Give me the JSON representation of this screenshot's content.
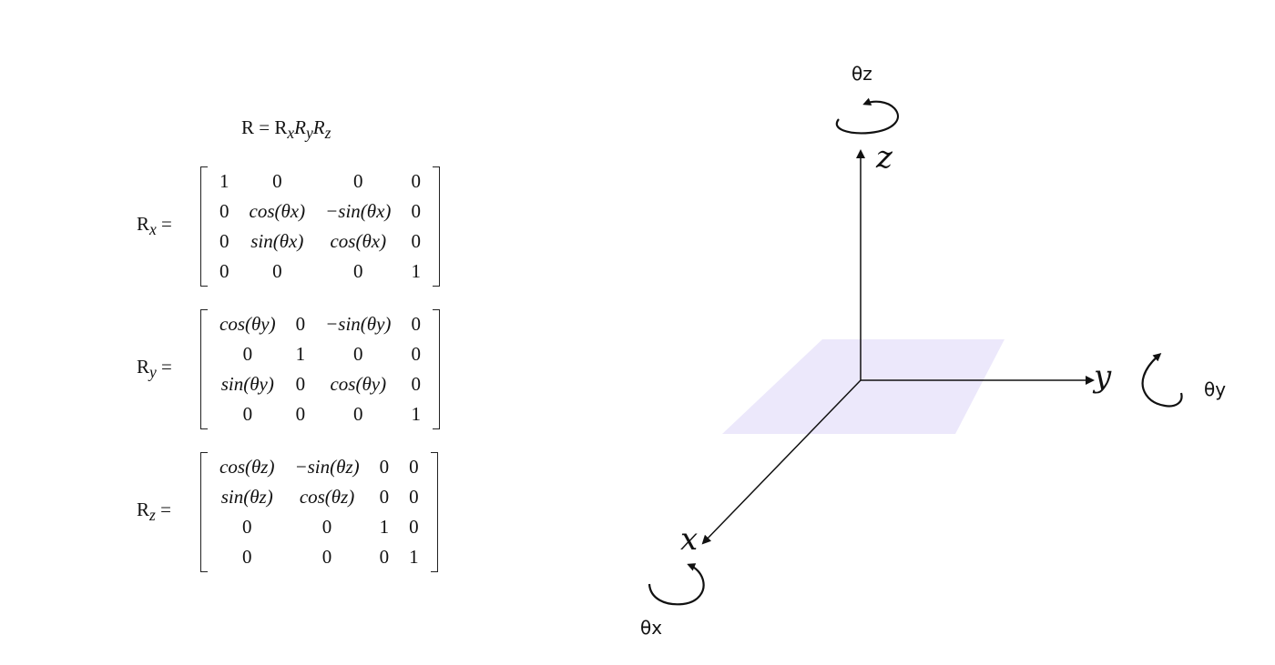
{
  "equation": {
    "lhs": "R",
    "eq": "=",
    "r": "R",
    "sub_x": "x",
    "ry": "R",
    "sub_y": "y",
    "rz": "R",
    "sub_z": "z"
  },
  "matrices": [
    {
      "label_base": "R",
      "label_sub": "x",
      "eq": "=",
      "rows": [
        [
          "1",
          "0",
          "0",
          "0"
        ],
        [
          "0",
          "cos(θx)",
          "−sin(θx)",
          "0"
        ],
        [
          "0",
          "sin(θx)",
          "cos(θx)",
          "0"
        ],
        [
          "0",
          "0",
          "0",
          "1"
        ]
      ]
    },
    {
      "label_base": "R",
      "label_sub": "y",
      "eq": "=",
      "rows": [
        [
          "cos(θy)",
          "0",
          "−sin(θy)",
          "0"
        ],
        [
          "0",
          "1",
          "0",
          "0"
        ],
        [
          "sin(θy)",
          "0",
          "cos(θy)",
          "0"
        ],
        [
          "0",
          "0",
          "0",
          "1"
        ]
      ]
    },
    {
      "label_base": "R",
      "label_sub": "z",
      "eq": "=",
      "rows": [
        [
          "cos(θz)",
          "−sin(θz)",
          "0",
          "0"
        ],
        [
          "sin(θz)",
          "cos(θz)",
          "0",
          "0"
        ],
        [
          "0",
          "0",
          "1",
          "0"
        ],
        [
          "0",
          "0",
          "0",
          "1"
        ]
      ]
    }
  ],
  "axes": {
    "z_label": "z",
    "y_label": "y",
    "x_label": "x",
    "theta_z": "θz",
    "theta_y": "θy",
    "theta_x": "θx"
  },
  "colors": {
    "plane": "#ece8fb",
    "line": "#111111"
  }
}
